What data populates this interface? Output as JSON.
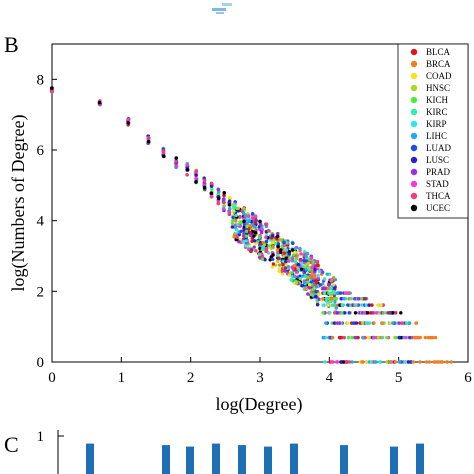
{
  "panels": {
    "top_label": "",
    "B_label": "B",
    "C_label": "C"
  },
  "chart_data": [
    {
      "type": "scatter",
      "title": "",
      "xlabel": "log(Degree)",
      "ylabel": "log(Numbers of Degree)",
      "xlim": [
        0,
        6
      ],
      "ylim": [
        0,
        9
      ],
      "xticks": [
        0,
        1,
        2,
        3,
        4,
        5,
        6
      ],
      "yticks": [
        0,
        2,
        4,
        6,
        8
      ],
      "grid": false,
      "legend_position": "top-right",
      "series": [
        {
          "name": "BLCA",
          "color": "#d7191c"
        },
        {
          "name": "BRCA",
          "color": "#f07f22"
        },
        {
          "name": "COAD",
          "color": "#f2e41a"
        },
        {
          "name": "HNSC",
          "color": "#a6dc1e"
        },
        {
          "name": "KICH",
          "color": "#52e83c"
        },
        {
          "name": "KIRC",
          "color": "#2ef0a0"
        },
        {
          "name": "KIRP",
          "color": "#2ee6e6"
        },
        {
          "name": "LIHC",
          "color": "#26a8f0"
        },
        {
          "name": "LUAD",
          "color": "#1e48f0"
        },
        {
          "name": "LUSC",
          "color": "#2d1ec8"
        },
        {
          "name": "PRAD",
          "color": "#9a2fe6"
        },
        {
          "name": "STAD",
          "color": "#f23cd8"
        },
        {
          "name": "THCA",
          "color": "#f23c82"
        },
        {
          "name": "UCEC",
          "color": "#000000"
        }
      ],
      "trend": {
        "x": [
          0,
          0.69,
          1.1,
          1.39,
          1.61,
          1.79,
          1.95,
          2.08,
          2.2,
          2.3,
          2.4,
          2.48,
          2.56,
          2.64,
          2.71,
          2.77,
          2.83,
          2.89,
          2.94,
          3.0,
          3.09,
          3.18,
          3.26,
          3.33,
          3.4,
          3.47,
          3.53,
          3.58,
          3.64,
          3.69,
          3.74,
          3.78,
          3.83
        ],
        "y": [
          7.7,
          7.35,
          6.8,
          6.3,
          5.95,
          5.65,
          5.45,
          5.25,
          5.05,
          4.85,
          4.7,
          4.55,
          4.45,
          4.3,
          4.15,
          4.05,
          3.95,
          3.85,
          3.75,
          3.65,
          3.5,
          3.35,
          3.2,
          3.1,
          3.0,
          2.9,
          2.8,
          2.7,
          2.6,
          2.5,
          2.4,
          2.35,
          2.25
        ]
      },
      "tail": {
        "x_range": [
          3.9,
          5.8
        ],
        "levels": [
          0,
          0.69,
          1.1,
          1.39,
          1.61,
          1.79,
          1.95,
          2.08
        ]
      }
    },
    {
      "type": "bar",
      "title": "",
      "ylim": [
        0,
        1
      ],
      "yticks": [
        1
      ],
      "values": [
        0.8,
        0.8,
        0.8,
        0.8,
        0.8,
        0.8,
        0.8,
        0.8,
        0.8,
        0.8
      ]
    }
  ]
}
